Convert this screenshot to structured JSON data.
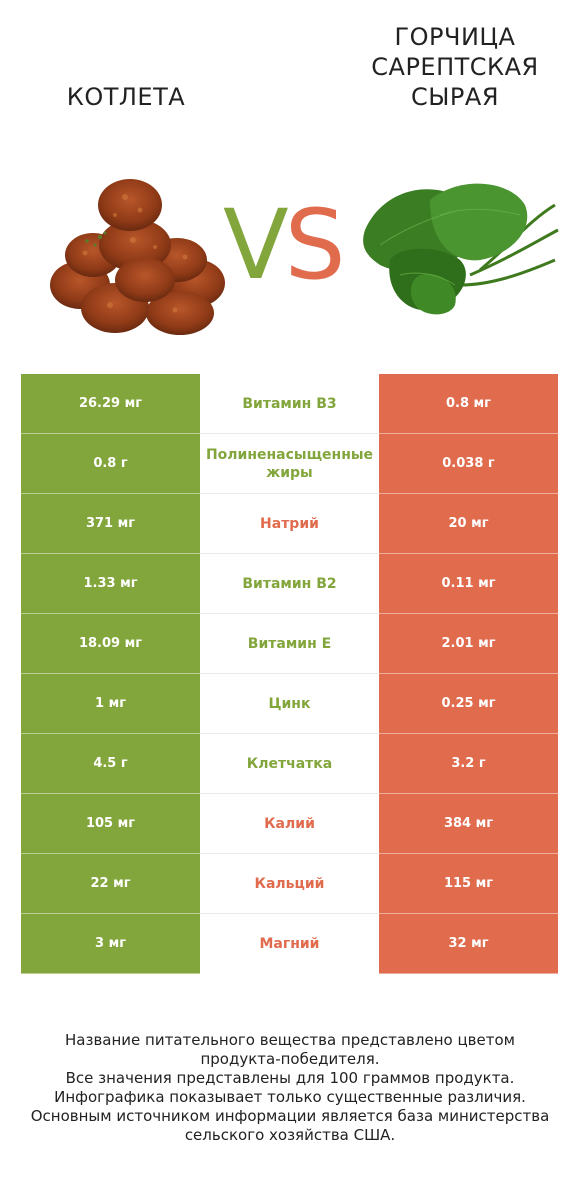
{
  "titles": {
    "left": "КОТЛЕТА",
    "right_lines": [
      "ГОРЧИЦА",
      "САРЕПТСКАЯ",
      "СЫРАЯ"
    ]
  },
  "vs": {
    "v": "V",
    "s": "S"
  },
  "colors": {
    "left": "#83a63c",
    "right": "#e06b4d"
  },
  "images": {
    "left": "meatball-patties-image",
    "right": "mustard-greens-image"
  },
  "rows": [
    {
      "nutrient": "Витамин B3",
      "left": "26.29 мг",
      "right": "0.8 мг",
      "winner": "left"
    },
    {
      "nutrient": "Полиненасыщенные жиры",
      "left": "0.8 г",
      "right": "0.038 г",
      "winner": "left"
    },
    {
      "nutrient": "Натрий",
      "left": "371 мг",
      "right": "20 мг",
      "winner": "right"
    },
    {
      "nutrient": "Витамин B2",
      "left": "1.33 мг",
      "right": "0.11 мг",
      "winner": "left"
    },
    {
      "nutrient": "Витамин E",
      "left": "18.09 мг",
      "right": "2.01 мг",
      "winner": "left"
    },
    {
      "nutrient": "Цинк",
      "left": "1 мг",
      "right": "0.25 мг",
      "winner": "left"
    },
    {
      "nutrient": "Клетчатка",
      "left": "4.5 г",
      "right": "3.2 г",
      "winner": "left"
    },
    {
      "nutrient": "Калий",
      "left": "105 мг",
      "right": "384 мг",
      "winner": "right"
    },
    {
      "nutrient": "Кальций",
      "left": "22 мг",
      "right": "115 мг",
      "winner": "right"
    },
    {
      "nutrient": "Магний",
      "left": "3 мг",
      "right": "32 мг",
      "winner": "right"
    }
  ],
  "footer_lines": [
    "Название питательного вещества представлено цветом",
    "продукта-победителя.",
    "Все значения представлены для 100 граммов продукта.",
    "Инфографика показывает только существенные различия.",
    "Основным источником информации является база министерства",
    "сельского хозяйства США."
  ]
}
